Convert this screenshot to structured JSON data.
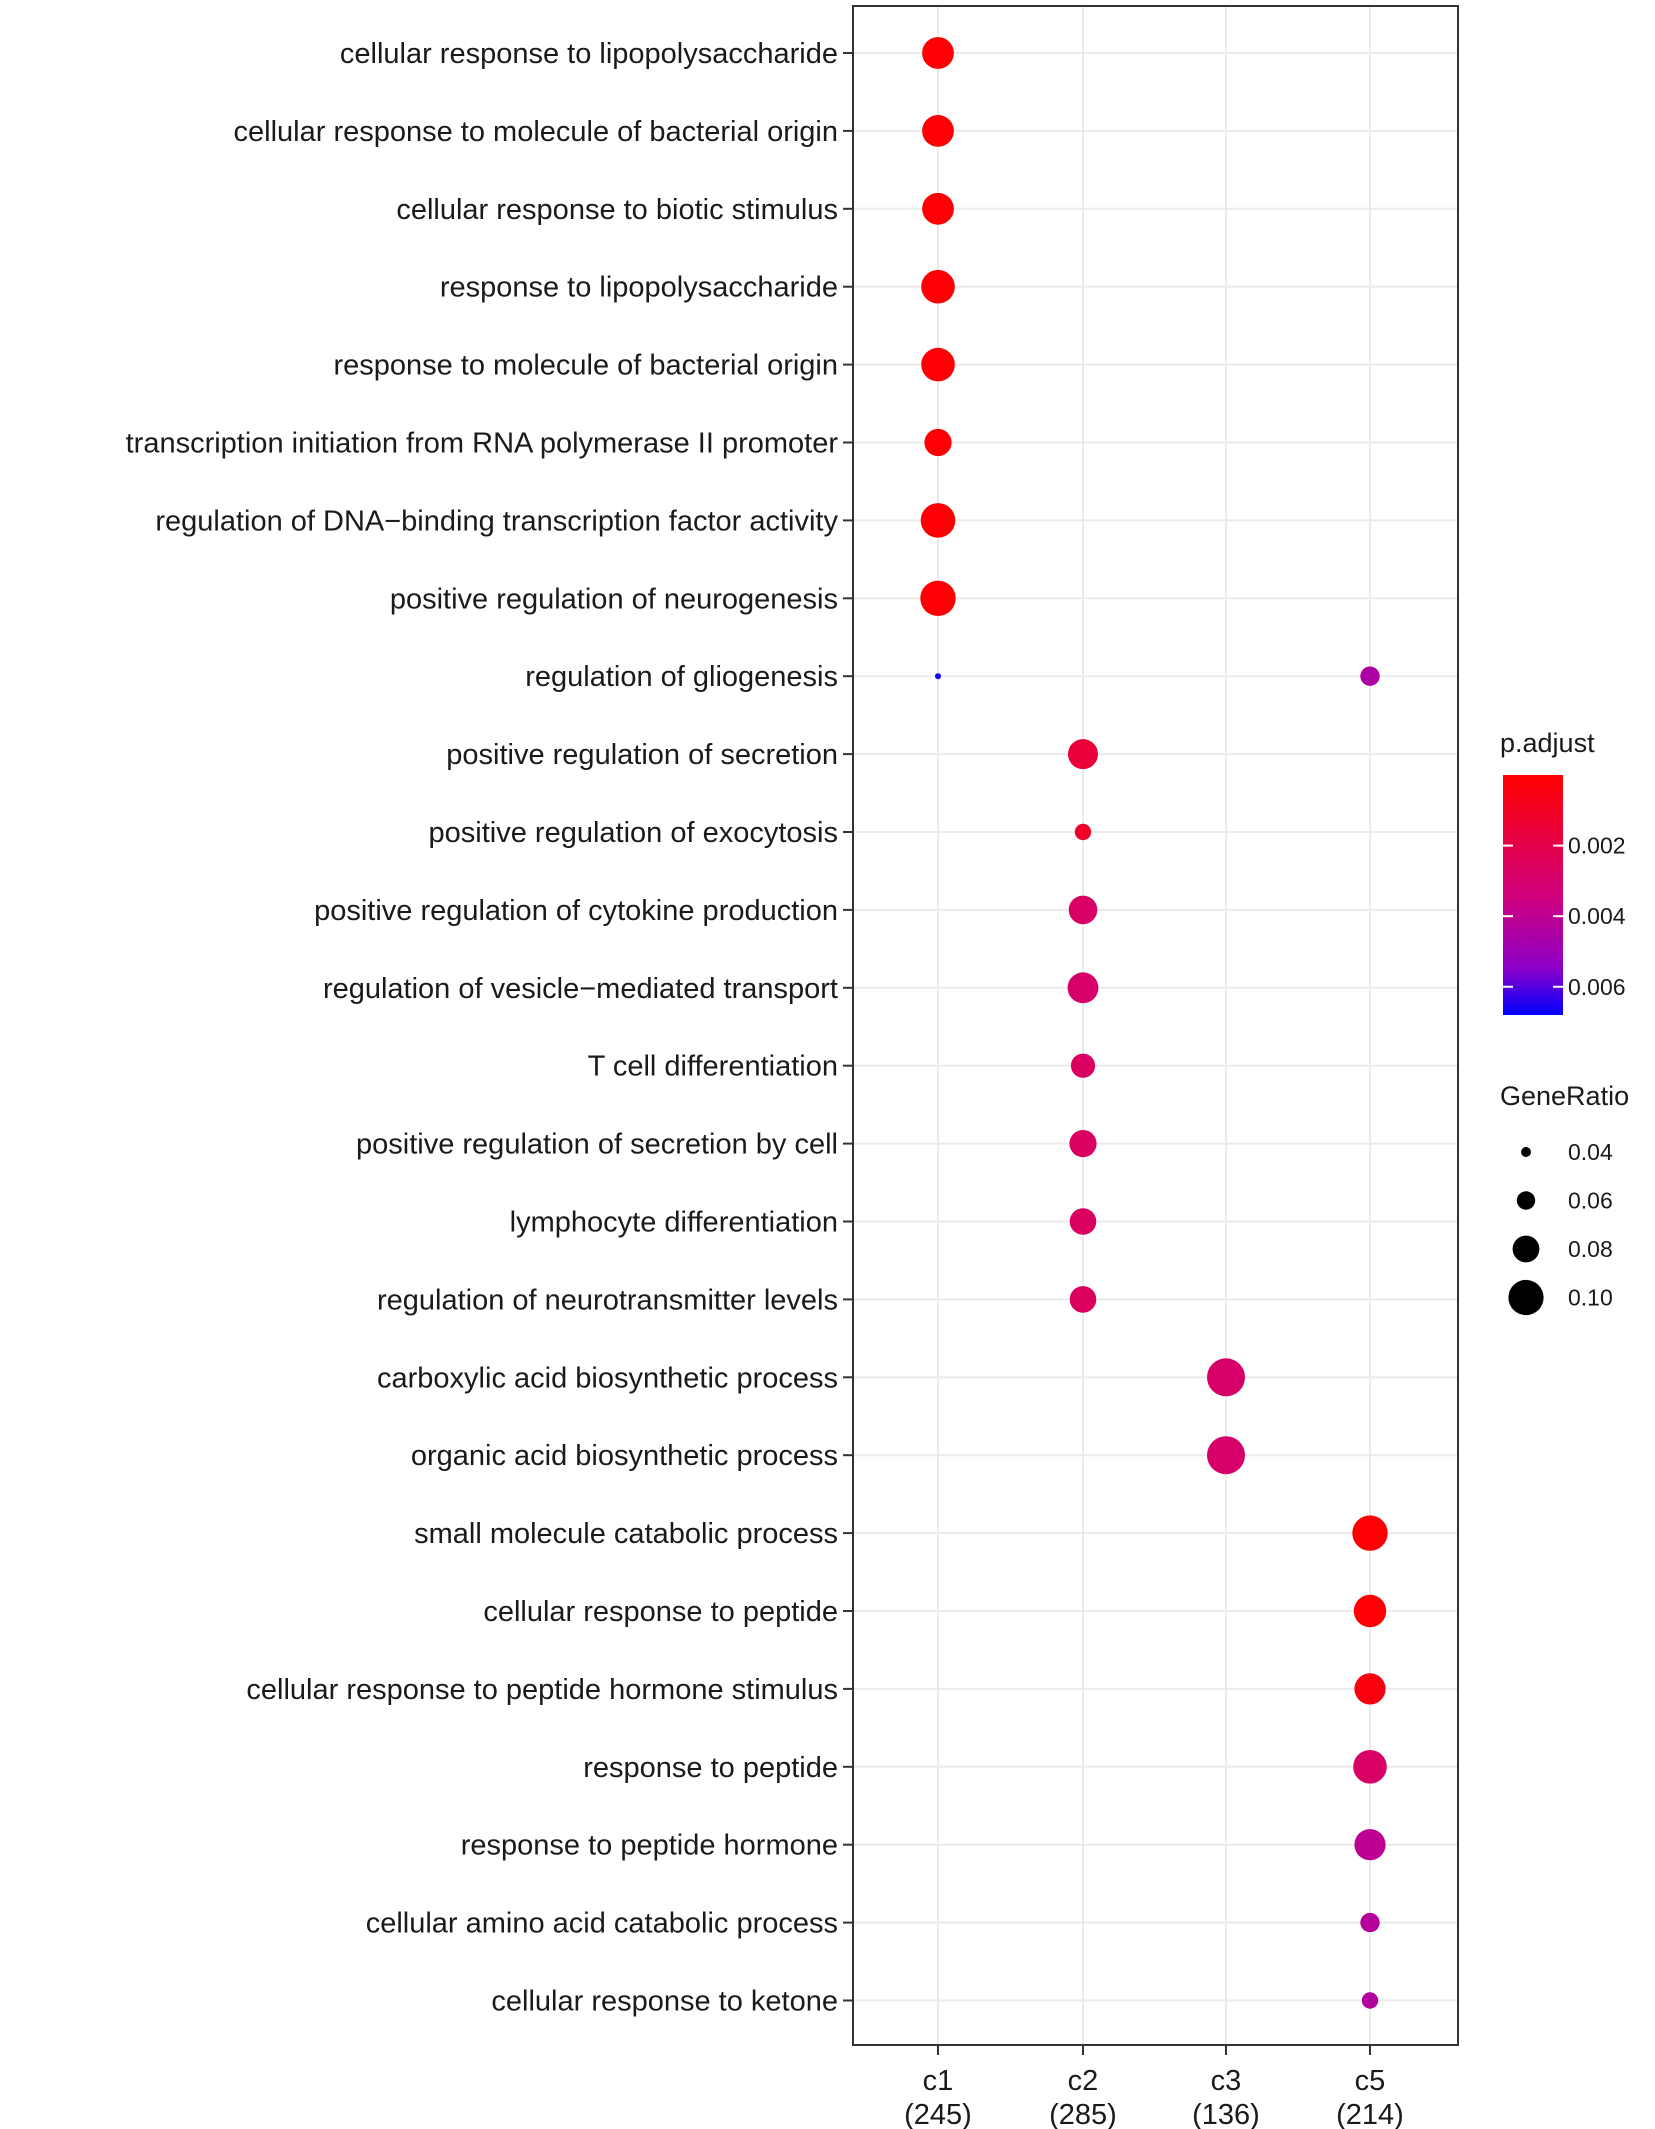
{
  "chart_data": {
    "type": "dotplot",
    "x_axis": {
      "categories": [
        "c1",
        "c2",
        "c3",
        "c5"
      ],
      "counts": [
        "(245)",
        "(285)",
        "(136)",
        "(214)"
      ]
    },
    "y_axis": {
      "terms": [
        "cellular response to lipopolysaccharide",
        "cellular response to molecule of bacterial origin",
        "cellular response to biotic stimulus",
        "response to lipopolysaccharide",
        "response to molecule of bacterial origin",
        "transcription initiation from RNA polymerase II promoter",
        "regulation of DNA−binding transcription factor activity",
        "positive regulation of neurogenesis",
        "regulation of gliogenesis",
        "positive regulation of secretion",
        "positive regulation of exocytosis",
        "positive regulation of cytokine production",
        "regulation of vesicle−mediated transport",
        "T cell differentiation",
        "positive regulation of secretion by cell",
        "lymphocyte differentiation",
        "regulation of neurotransmitter levels",
        "carboxylic acid biosynthetic process",
        "organic acid biosynthetic process",
        "small molecule catabolic process",
        "cellular response to peptide",
        "cellular response to peptide hormone stimulus",
        "response to peptide",
        "response to peptide hormone",
        "cellular amino acid catabolic process",
        "cellular response to ketone"
      ]
    },
    "points": [
      {
        "term": 0,
        "cluster": "c1",
        "gene_ratio": 0.082,
        "p_adjust": 0.0001
      },
      {
        "term": 1,
        "cluster": "c1",
        "gene_ratio": 0.082,
        "p_adjust": 0.0001
      },
      {
        "term": 2,
        "cluster": "c1",
        "gene_ratio": 0.082,
        "p_adjust": 0.0001
      },
      {
        "term": 3,
        "cluster": "c1",
        "gene_ratio": 0.09,
        "p_adjust": 0.0001
      },
      {
        "term": 4,
        "cluster": "c1",
        "gene_ratio": 0.09,
        "p_adjust": 0.0001
      },
      {
        "term": 5,
        "cluster": "c1",
        "gene_ratio": 0.065,
        "p_adjust": 0.0001
      },
      {
        "term": 6,
        "cluster": "c1",
        "gene_ratio": 0.094,
        "p_adjust": 0.0001
      },
      {
        "term": 7,
        "cluster": "c1",
        "gene_ratio": 0.098,
        "p_adjust": 0.0001
      },
      {
        "term": 8,
        "cluster": "c1",
        "gene_ratio": 0.02,
        "p_adjust": 0.0067
      },
      {
        "term": 8,
        "cluster": "c5",
        "gene_ratio": 0.042,
        "p_adjust": 0.0045
      },
      {
        "term": 9,
        "cluster": "c2",
        "gene_ratio": 0.075,
        "p_adjust": 0.0015
      },
      {
        "term": 10,
        "cluster": "c2",
        "gene_ratio": 0.035,
        "p_adjust": 0.0012
      },
      {
        "term": 11,
        "cluster": "c2",
        "gene_ratio": 0.07,
        "p_adjust": 0.0028
      },
      {
        "term": 12,
        "cluster": "c2",
        "gene_ratio": 0.078,
        "p_adjust": 0.0029
      },
      {
        "term": 13,
        "cluster": "c2",
        "gene_ratio": 0.055,
        "p_adjust": 0.0027
      },
      {
        "term": 14,
        "cluster": "c2",
        "gene_ratio": 0.065,
        "p_adjust": 0.0027
      },
      {
        "term": 15,
        "cluster": "c2",
        "gene_ratio": 0.063,
        "p_adjust": 0.0027
      },
      {
        "term": 16,
        "cluster": "c2",
        "gene_ratio": 0.063,
        "p_adjust": 0.0026
      },
      {
        "term": 17,
        "cluster": "c3",
        "gene_ratio": 0.11,
        "p_adjust": 0.0029
      },
      {
        "term": 18,
        "cluster": "c3",
        "gene_ratio": 0.11,
        "p_adjust": 0.0029
      },
      {
        "term": 19,
        "cluster": "c5",
        "gene_ratio": 0.098,
        "p_adjust": 0.0001
      },
      {
        "term": 20,
        "cluster": "c5",
        "gene_ratio": 0.085,
        "p_adjust": 0.0001
      },
      {
        "term": 21,
        "cluster": "c5",
        "gene_ratio": 0.08,
        "p_adjust": 0.0004
      },
      {
        "term": 22,
        "cluster": "c5",
        "gene_ratio": 0.09,
        "p_adjust": 0.0028
      },
      {
        "term": 23,
        "cluster": "c5",
        "gene_ratio": 0.08,
        "p_adjust": 0.004
      },
      {
        "term": 24,
        "cluster": "c5",
        "gene_ratio": 0.042,
        "p_adjust": 0.0042
      },
      {
        "term": 25,
        "cluster": "c5",
        "gene_ratio": 0.035,
        "p_adjust": 0.0043
      }
    ],
    "color_legend": {
      "title": "p.adjust",
      "min": 0.0,
      "max": 0.0068,
      "ticks": [
        0.002,
        0.004,
        0.006
      ],
      "tick_labels": [
        "0.002",
        "0.004",
        "0.006"
      ],
      "low_color": "#ff0000",
      "high_color": "#0000ff",
      "mid_color": "#b000c0"
    },
    "size_legend": {
      "title": "GeneRatio",
      "values": [
        0.04,
        0.06,
        0.08,
        0.1
      ],
      "labels": [
        "0.04",
        "0.06",
        "0.08",
        "0.10"
      ]
    }
  }
}
